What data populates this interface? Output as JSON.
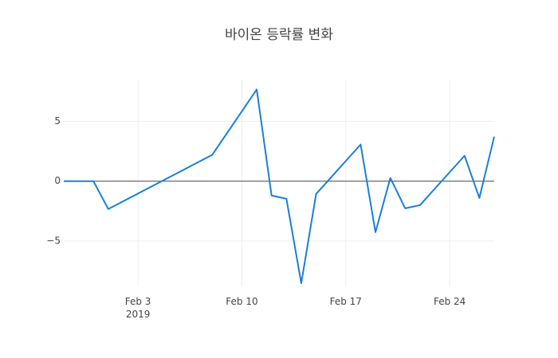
{
  "chart_data": {
    "type": "line",
    "title": "바이온 등락률 변화",
    "x": [
      "2019-01-29",
      "2019-01-30",
      "2019-01-31",
      "2019-02-01",
      "2019-02-08",
      "2019-02-11",
      "2019-02-12",
      "2019-02-13",
      "2019-02-14",
      "2019-02-15",
      "2019-02-18",
      "2019-02-19",
      "2019-02-20",
      "2019-02-21",
      "2019-02-22",
      "2019-02-25",
      "2019-02-26",
      "2019-02-27"
    ],
    "series": [
      {
        "name": "등락률",
        "color": "#1a7fd9",
        "values": [
          0,
          0,
          0,
          -2.33,
          2.2,
          7.67,
          -1.2,
          -1.47,
          -8.53,
          -1.07,
          3.07,
          -4.27,
          0.27,
          -2.27,
          -2.0,
          2.13,
          -1.4,
          3.73
        ]
      }
    ],
    "xlim": [
      "2019-01-29",
      "2019-02-27"
    ],
    "xticks": [
      {
        "value": "2019-02-03",
        "label": "Feb 3\n2019"
      },
      {
        "value": "2019-02-10",
        "label": "Feb 10"
      },
      {
        "value": "2019-02-17",
        "label": "Feb 17"
      },
      {
        "value": "2019-02-24",
        "label": "Feb 24"
      }
    ],
    "ylim": [
      -8.8,
      8.5
    ],
    "yticks": [
      {
        "value": -5,
        "label": "−5"
      },
      0,
      5
    ],
    "grid": true,
    "zeroline": true
  }
}
